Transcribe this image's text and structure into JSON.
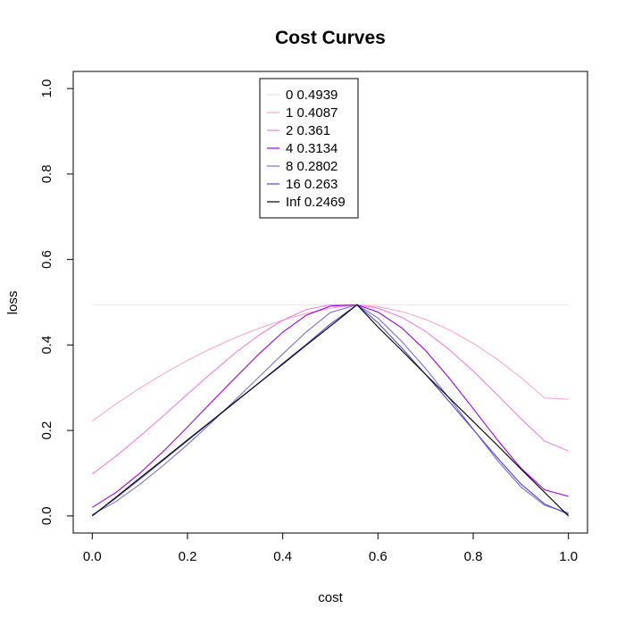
{
  "chart_data": {
    "type": "line",
    "title": "Cost Curves",
    "xlabel": "cost",
    "ylabel": "loss",
    "xlim": [
      -0.04,
      1.04
    ],
    "ylim": [
      -0.04,
      1.04
    ],
    "xticks": [
      0.0,
      0.2,
      0.4,
      0.6,
      0.8,
      1.0
    ],
    "yticks": [
      0.0,
      0.2,
      0.4,
      0.6,
      0.8,
      1.0
    ],
    "tick_labels": [
      "0.0",
      "0.2",
      "0.4",
      "0.6",
      "0.8",
      "1.0"
    ],
    "legend_position": "top-center",
    "grid": false,
    "x": [
      0.0,
      0.05,
      0.1,
      0.15,
      0.2,
      0.25,
      0.3,
      0.35,
      0.4,
      0.45,
      0.5,
      0.556,
      0.6,
      0.65,
      0.7,
      0.75,
      0.8,
      0.85,
      0.9,
      0.95,
      1.0
    ],
    "series": [
      {
        "name": "0 0.4939",
        "color": "#ffd6e3",
        "values": [
          0.494,
          0.494,
          0.494,
          0.494,
          0.494,
          0.494,
          0.494,
          0.494,
          0.494,
          0.494,
          0.494,
          0.494,
          0.494,
          0.494,
          0.494,
          0.494,
          0.494,
          0.494,
          0.494,
          0.494,
          0.494
        ]
      },
      {
        "name": "1 0.4087",
        "color": "#ffa6c9",
        "values": [
          0.222,
          0.262,
          0.299,
          0.333,
          0.364,
          0.392,
          0.417,
          0.439,
          0.458,
          0.474,
          0.486,
          0.494,
          0.49,
          0.478,
          0.46,
          0.435,
          0.404,
          0.367,
          0.324,
          0.276,
          0.273
        ]
      },
      {
        "name": "2 0.361",
        "color": "#f07ee6",
        "values": [
          0.098,
          0.14,
          0.186,
          0.235,
          0.285,
          0.334,
          0.381,
          0.423,
          0.458,
          0.483,
          0.494,
          0.494,
          0.486,
          0.465,
          0.432,
          0.389,
          0.339,
          0.284,
          0.228,
          0.175,
          0.152
        ]
      },
      {
        "name": "4 0.3134",
        "color": "#a100e6",
        "values": [
          0.02,
          0.055,
          0.1,
          0.152,
          0.208,
          0.266,
          0.323,
          0.379,
          0.43,
          0.47,
          0.491,
          0.494,
          0.477,
          0.44,
          0.387,
          0.322,
          0.251,
          0.179,
          0.112,
          0.061,
          0.046
        ]
      },
      {
        "name": "8 0.2802",
        "color": "#7a6ed6",
        "values": [
          0.003,
          0.034,
          0.074,
          0.119,
          0.167,
          0.218,
          0.271,
          0.325,
          0.379,
          0.431,
          0.476,
          0.494,
          0.463,
          0.408,
          0.345,
          0.275,
          0.203,
          0.131,
          0.068,
          0.025,
          0.007
        ]
      },
      {
        "name": "16 0.263",
        "color": "#4b4bc9",
        "values": [
          0.001,
          0.042,
          0.086,
          0.131,
          0.176,
          0.221,
          0.266,
          0.311,
          0.357,
          0.402,
          0.449,
          0.494,
          0.452,
          0.393,
          0.331,
          0.267,
          0.202,
          0.137,
          0.075,
          0.028,
          0.004
        ]
      },
      {
        "name": "Inf 0.2469",
        "color": "#000000",
        "values": [
          0.0,
          0.044,
          0.089,
          0.133,
          0.178,
          0.222,
          0.267,
          0.311,
          0.355,
          0.4,
          0.444,
          0.494,
          0.442,
          0.387,
          0.331,
          0.276,
          0.221,
          0.166,
          0.11,
          0.055,
          0.0
        ]
      }
    ]
  }
}
